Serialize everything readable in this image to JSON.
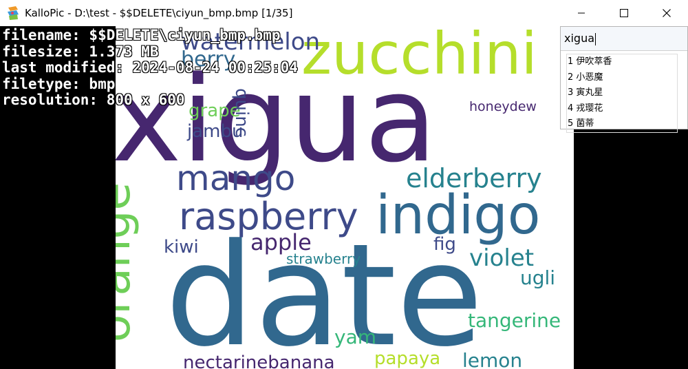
{
  "window": {
    "title": "KalloPic - D:\\test - $$DELETE\\ciyun_bmp.bmp [1/35]",
    "icon": "kallopic-app-icon"
  },
  "info": {
    "filename": "filename: $$DELETE\\ciyun_bmp.bmp",
    "filesize": "filesize: 1.373 MB",
    "modified": "last modified: 2024-08-24 00:25:04",
    "filetype": "filetype: bmp",
    "resolution": "resolution: 800 x 600"
  },
  "ime": {
    "input": "xigua",
    "candidates": [
      "1 伊吹萃香",
      "2 小恶魔",
      "3 寅丸星",
      "4 戎璎花",
      "5 菌蒂"
    ]
  },
  "wordcloud": {
    "colors": {
      "purple": "#46276f",
      "indigo": "#3e4a89",
      "blue": "#31688e",
      "teal": "#26828e",
      "green": "#35b779",
      "lime": "#6ece58",
      "yellow": "#b5de2b"
    },
    "words": {
      "xigua": "xigua",
      "date": "date",
      "zucchini": "zucchini",
      "watermelon": "watermelon",
      "berry": "berry",
      "indigo": "indigo",
      "orange": "orange",
      "raspberry": "raspberry",
      "mango": "mango",
      "elderberry": "elderberry",
      "grape": "grape",
      "jambu": "jambu",
      "quince": "quinc",
      "honeydew": "honeydew",
      "apple": "apple",
      "kiwi": "kiwi",
      "fig": "fig",
      "violet": "violet",
      "strawberry": "strawberry",
      "ugli": "ugli",
      "tangerine": "tangerine",
      "yam": "yam",
      "papaya": "papaya",
      "nectarinebanana": "nectarinebanana",
      "lemon": "lemon"
    }
  }
}
